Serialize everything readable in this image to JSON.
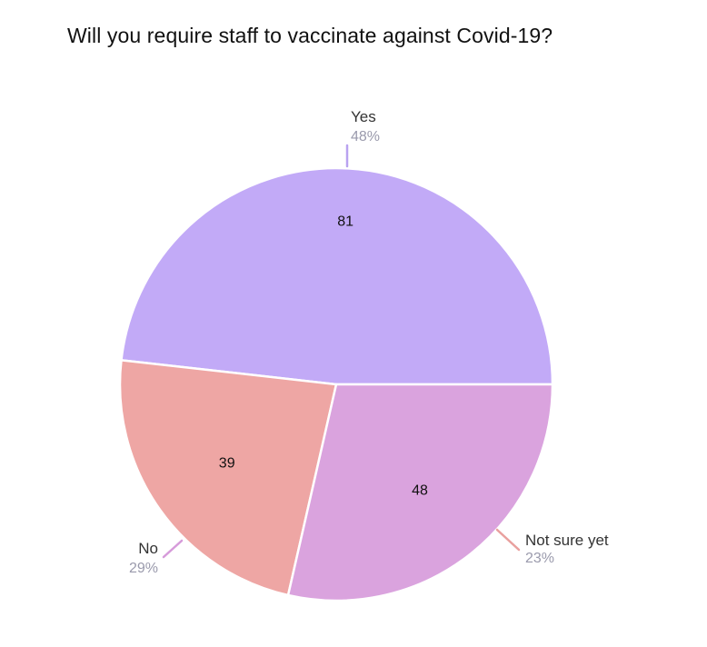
{
  "chart_data": {
    "type": "pie",
    "title": "Will you require staff to vaccinate against Covid-19?",
    "slices": [
      {
        "label": "Yes",
        "value": 81,
        "percent_label": "48%",
        "color": "#c2aaf7",
        "leader_color": "#b9a2f0"
      },
      {
        "label": "Not sure yet",
        "value": 39,
        "percent_label": "23%",
        "color": "#eea6a4",
        "leader_color": "#e9a09e"
      },
      {
        "label": "No",
        "value": 48,
        "percent_label": "29%",
        "color": "#daa3de",
        "leader_color": "#d69bda"
      }
    ],
    "legend": "none"
  }
}
